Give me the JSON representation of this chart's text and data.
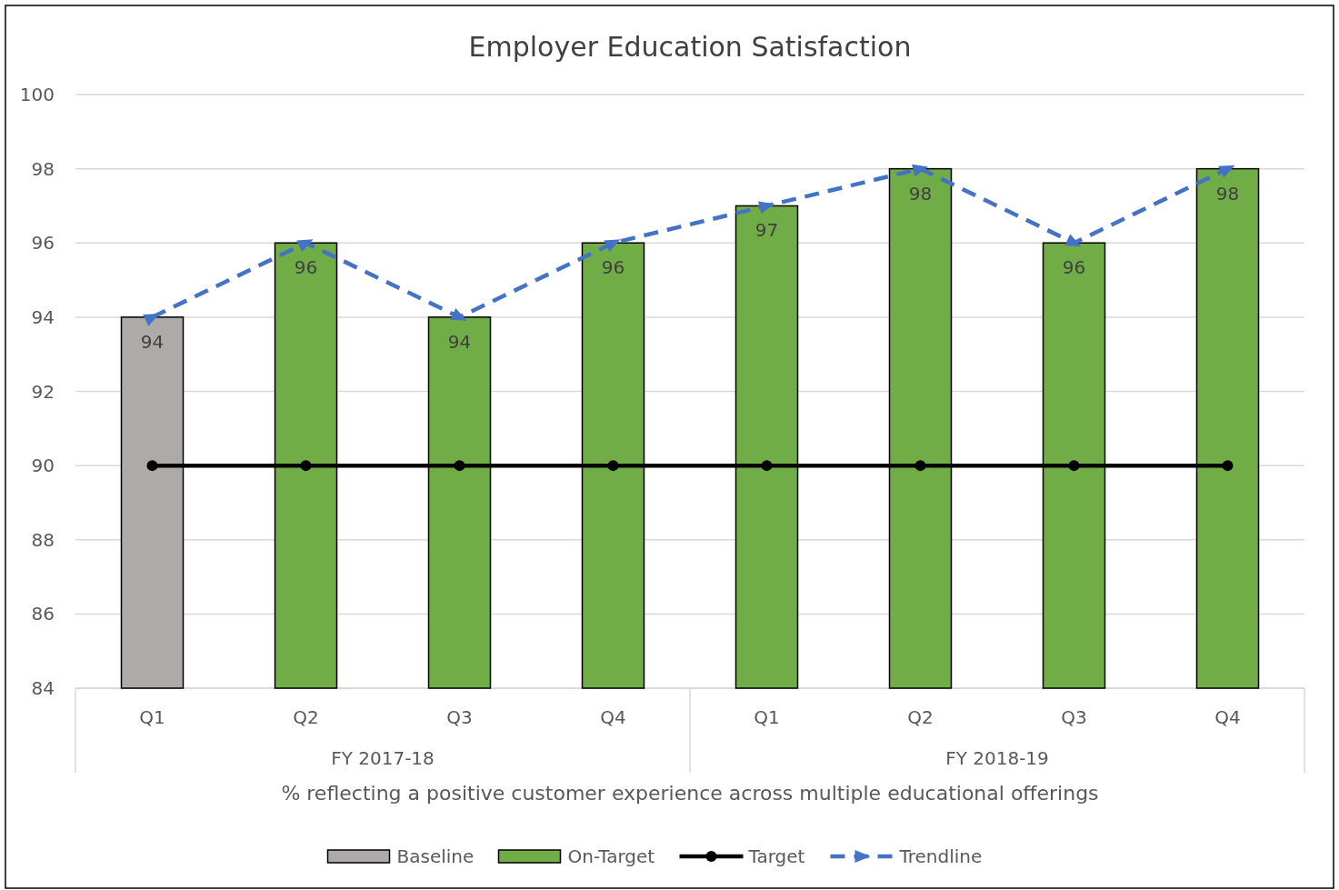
{
  "chart_data": {
    "type": "bar",
    "title": "Employer Education Satisfaction",
    "xlabel": "% reflecting a positive customer experience across multiple educational offerings",
    "categories": [
      "Q1",
      "Q2",
      "Q3",
      "Q4",
      "Q1",
      "Q2",
      "Q3",
      "Q4"
    ],
    "annotations": [
      "FY 2017-18",
      "FY 2018-19"
    ],
    "series": [
      {
        "name": "Baseline",
        "color": "#aeaaaa",
        "values": [
          94,
          null,
          null,
          null,
          null,
          null,
          null,
          null
        ],
        "value_labels": [
          "94",
          null,
          null,
          null,
          null,
          null,
          null,
          null
        ]
      },
      {
        "name": "On-Target",
        "color": "#70ad47",
        "values": [
          null,
          96,
          94,
          96,
          97,
          98,
          96,
          98
        ],
        "value_labels": [
          null,
          "96",
          "94",
          "96",
          "97",
          "98",
          "96",
          "98"
        ]
      },
      {
        "name": "Target",
        "type": "line",
        "color": "#000000",
        "marker": "circle",
        "line_style": "solid",
        "values": [
          90,
          90,
          90,
          90,
          90,
          90,
          90,
          90
        ]
      },
      {
        "name": "Trendline",
        "type": "line",
        "color": "#4472c4",
        "marker": "triangle",
        "line_style": "dashed",
        "values": [
          94,
          96,
          94,
          96,
          97,
          98,
          96,
          98
        ]
      }
    ],
    "ylim": [
      84,
      100
    ],
    "yticks": [
      84,
      86,
      88,
      90,
      92,
      94,
      96,
      98,
      100
    ],
    "grid": "y",
    "legend": "bottom"
  }
}
